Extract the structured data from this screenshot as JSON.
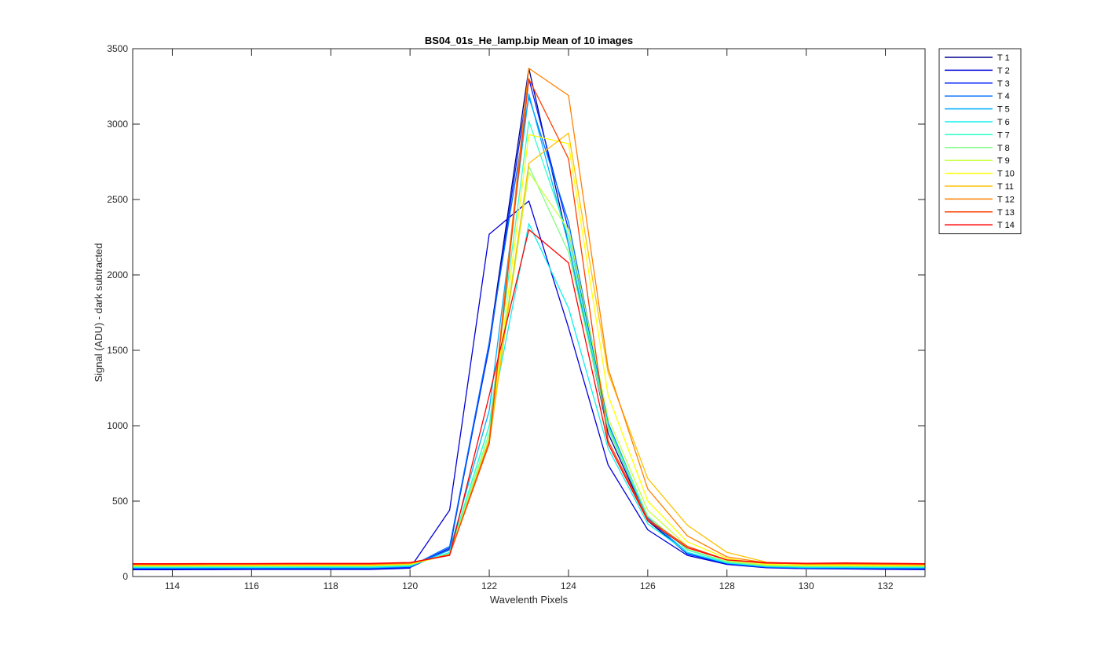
{
  "chart_data": {
    "type": "line",
    "title": "BS04_01s_He_lamp.bip  Mean of 10 images",
    "xlabel": "Wavelenth Pixels",
    "ylabel": "Signal (ADU) - dark subtracted",
    "xlim": [
      113,
      133
    ],
    "ylim": [
      0,
      3500
    ],
    "xticks": [
      114,
      116,
      118,
      120,
      122,
      124,
      126,
      128,
      130,
      132
    ],
    "yticks": [
      0,
      500,
      1000,
      1500,
      2000,
      2500,
      3000,
      3500
    ],
    "legend_position": "outside-top-right",
    "x": [
      113,
      114,
      115,
      116,
      117,
      118,
      119,
      120,
      121,
      122,
      123,
      124,
      125,
      126,
      127,
      128,
      129,
      130,
      131,
      132,
      133
    ],
    "series": [
      {
        "name": "T 1",
        "color": "#00008f",
        "values": [
          50,
          50,
          52,
          52,
          53,
          52,
          52,
          60,
          180,
          1550,
          3370,
          2200,
          950,
          370,
          150,
          85,
          60,
          55,
          55,
          52,
          50
        ]
      },
      {
        "name": "T 2",
        "color": "#0000d9",
        "values": [
          45,
          45,
          46,
          47,
          47,
          47,
          47,
          55,
          440,
          2270,
          2490,
          1650,
          740,
          310,
          140,
          80,
          58,
          52,
          50,
          48,
          46
        ]
      },
      {
        "name": "T 3",
        "color": "#0020ff",
        "values": [
          50,
          51,
          52,
          52,
          52,
          52,
          52,
          60,
          190,
          1520,
          3300,
          2300,
          1000,
          380,
          150,
          85,
          60,
          55,
          54,
          53,
          50
        ]
      },
      {
        "name": "T 4",
        "color": "#0070ff",
        "values": [
          55,
          55,
          56,
          56,
          57,
          57,
          57,
          65,
          200,
          1550,
          3180,
          2350,
          1020,
          390,
          155,
          88,
          62,
          57,
          57,
          56,
          55
        ]
      },
      {
        "name": "T 5",
        "color": "#00b0ff",
        "values": [
          58,
          58,
          58,
          59,
          59,
          59,
          59,
          67,
          175,
          1100,
          3200,
          2200,
          980,
          380,
          160,
          90,
          65,
          60,
          59,
          58,
          58
        ]
      },
      {
        "name": "T 6",
        "color": "#10f0f0",
        "values": [
          60,
          60,
          61,
          61,
          61,
          62,
          62,
          70,
          160,
          1000,
          2340,
          1780,
          850,
          350,
          160,
          90,
          68,
          62,
          62,
          60,
          60
        ]
      },
      {
        "name": "T 7",
        "color": "#30ffc8",
        "values": [
          65,
          65,
          66,
          66,
          67,
          67,
          67,
          74,
          155,
          1000,
          3020,
          2250,
          1000,
          400,
          175,
          95,
          70,
          66,
          66,
          65,
          65
        ]
      },
      {
        "name": "T 8",
        "color": "#80ff80",
        "values": [
          68,
          68,
          69,
          69,
          70,
          70,
          70,
          78,
          150,
          950,
          2720,
          2150,
          980,
          400,
          180,
          98,
          72,
          68,
          68,
          68,
          68
        ]
      },
      {
        "name": "T 9",
        "color": "#c8ff40",
        "values": [
          70,
          70,
          71,
          71,
          72,
          72,
          72,
          80,
          150,
          920,
          2680,
          2300,
          1050,
          440,
          200,
          105,
          76,
          72,
          72,
          70,
          70
        ]
      },
      {
        "name": "T 10",
        "color": "#ffff00",
        "values": [
          72,
          72,
          73,
          73,
          74,
          74,
          74,
          82,
          145,
          900,
          2930,
          2870,
          1200,
          500,
          230,
          120,
          82,
          75,
          75,
          73,
          72
        ]
      },
      {
        "name": "T 11",
        "color": "#ffc000",
        "values": [
          75,
          75,
          76,
          76,
          77,
          77,
          77,
          85,
          145,
          880,
          2740,
          2940,
          1350,
          650,
          340,
          160,
          95,
          80,
          80,
          78,
          75
        ]
      },
      {
        "name": "T 12",
        "color": "#ff8000",
        "values": [
          80,
          80,
          81,
          81,
          82,
          82,
          82,
          88,
          145,
          900,
          3370,
          3190,
          1380,
          580,
          270,
          130,
          90,
          84,
          84,
          82,
          80
        ]
      },
      {
        "name": "T 13",
        "color": "#ff4000",
        "values": [
          82,
          82,
          83,
          83,
          84,
          84,
          84,
          90,
          145,
          880,
          3300,
          2770,
          900,
          380,
          200,
          110,
          88,
          85,
          86,
          84,
          82
        ]
      },
      {
        "name": "T 14",
        "color": "#ff0000",
        "values": [
          85,
          85,
          86,
          86,
          87,
          87,
          87,
          93,
          140,
          1200,
          2300,
          2080,
          880,
          370,
          190,
          110,
          92,
          88,
          90,
          88,
          85
        ]
      }
    ]
  }
}
